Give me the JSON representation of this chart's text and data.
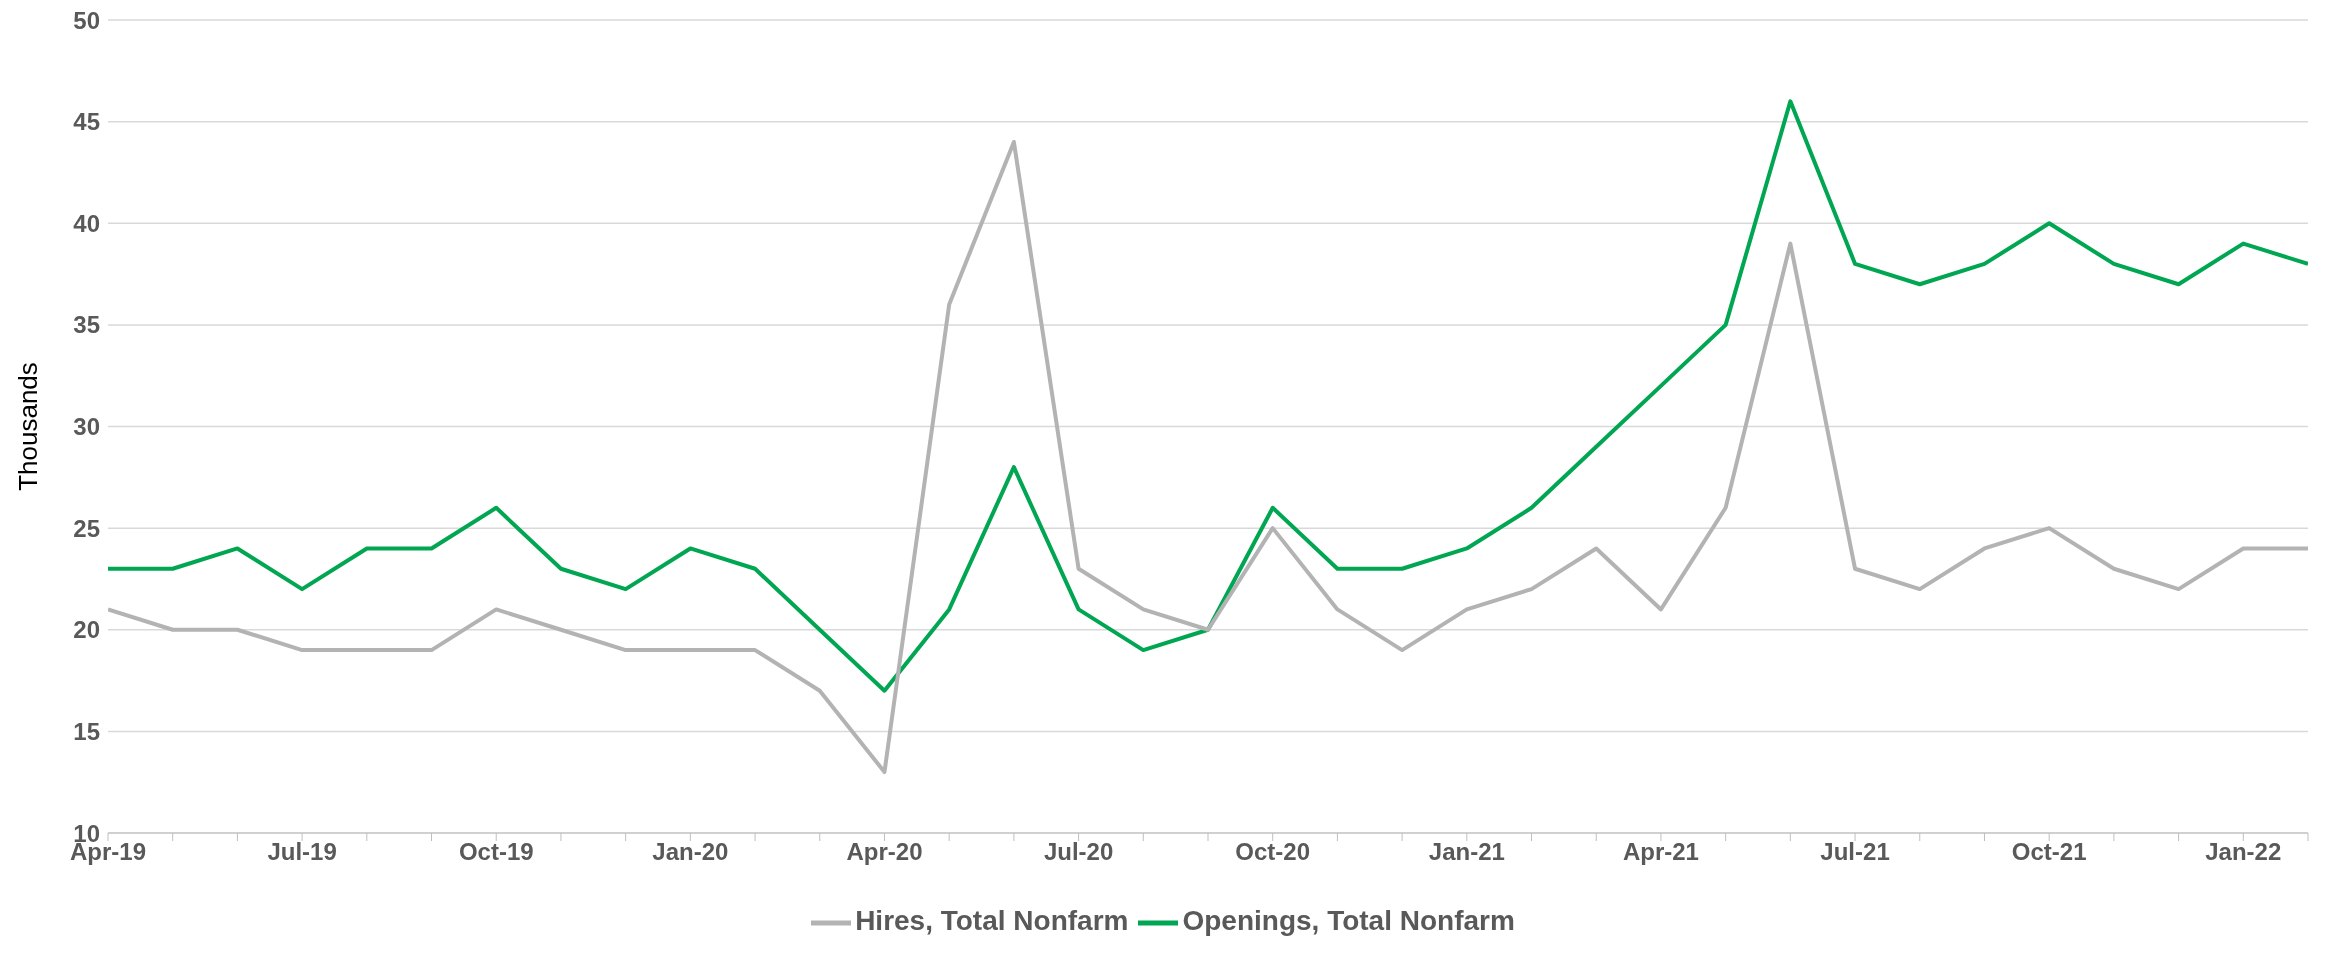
{
  "chart_data": {
    "type": "line",
    "ylabel": "Thousands",
    "categories": [
      "Apr-19",
      null,
      null,
      "Jul-19",
      null,
      null,
      "Oct-19",
      null,
      null,
      "Jan-20",
      null,
      null,
      "Apr-20",
      null,
      null,
      "Jul-20",
      null,
      null,
      "Oct-20",
      null,
      null,
      "Jan-21",
      null,
      null,
      "Apr-21",
      null,
      null,
      "Jul-21",
      null,
      null,
      "Oct-21",
      null,
      null,
      "Jan-22",
      null
    ],
    "series": [
      {
        "name": "Openings, Total Nonfarm",
        "color": "#00a651",
        "values": [
          23,
          23,
          24,
          22,
          24,
          24,
          26,
          23,
          22,
          24,
          23,
          20,
          17,
          21,
          28,
          21,
          19,
          20,
          26,
          23,
          23,
          24,
          26,
          29,
          32,
          35,
          46,
          38,
          37,
          38,
          40,
          38,
          37,
          39,
          38
        ]
      },
      {
        "name": "Hires, Total Nonfarm",
        "color": "#b3b3b3",
        "values": [
          21,
          20,
          20,
          19,
          19,
          19,
          21,
          20,
          19,
          19,
          19,
          17,
          13,
          36,
          44,
          23,
          21,
          20,
          25,
          21,
          19,
          21,
          22,
          24,
          21,
          26,
          39,
          23,
          22,
          24,
          25,
          23,
          22,
          24,
          24
        ]
      }
    ],
    "ylim": [
      10,
      50
    ],
    "yticks": [
      10,
      15,
      20,
      25,
      30,
      35,
      40,
      45,
      50
    ],
    "grid": "y",
    "legend": "bottom",
    "marker": "none",
    "line_style": "solid"
  }
}
